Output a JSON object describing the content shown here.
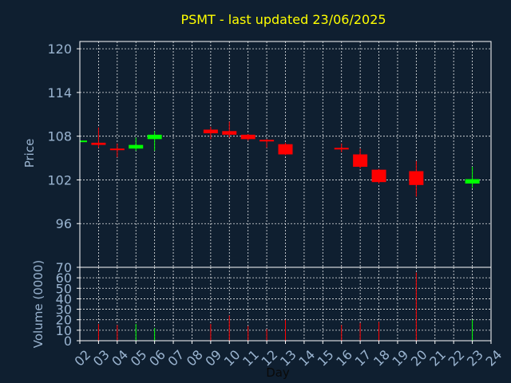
{
  "chart_data": {
    "type": "candlestick",
    "title": "PSMT - last updated 23/06/2025",
    "xlabel": "Day",
    "x_ticks": [
      "02",
      "03",
      "04",
      "05",
      "06",
      "07",
      "08",
      "09",
      "10",
      "11",
      "12",
      "13",
      "14",
      "15",
      "16",
      "17",
      "18",
      "19",
      "20",
      "21",
      "22",
      "23",
      "24"
    ],
    "price": {
      "ylabel": "Price",
      "ylim": [
        90,
        121
      ],
      "yticks": [
        96,
        102,
        108,
        114,
        120
      ],
      "candles": [
        {
          "day": "02",
          "open": 107.4,
          "close": 107.4,
          "high": 107.5,
          "low": 107.3
        },
        {
          "day": "03",
          "open": 107.1,
          "close": 106.8,
          "high": 109.2,
          "low": 106.4
        },
        {
          "day": "04",
          "open": 106.3,
          "close": 106.2,
          "high": 107.0,
          "low": 105.1
        },
        {
          "day": "05",
          "open": 106.3,
          "close": 106.8,
          "high": 107.8,
          "low": 106.0
        },
        {
          "day": "06",
          "open": 107.6,
          "close": 108.2,
          "high": 108.7,
          "low": 106.0
        },
        {
          "day": "09",
          "open": 108.9,
          "close": 108.4,
          "high": 109.3,
          "low": 107.6
        },
        {
          "day": "10",
          "open": 108.7,
          "close": 108.2,
          "high": 110.0,
          "low": 107.8
        },
        {
          "day": "11",
          "open": 108.2,
          "close": 107.6,
          "high": 108.3,
          "low": 107.4
        },
        {
          "day": "12",
          "open": 107.5,
          "close": 107.4,
          "high": 107.6,
          "low": 106.4
        },
        {
          "day": "13",
          "open": 106.9,
          "close": 105.5,
          "high": 107.1,
          "low": 105.4
        },
        {
          "day": "16",
          "open": 106.4,
          "close": 106.2,
          "high": 107.0,
          "low": 105.8
        },
        {
          "day": "17",
          "open": 105.5,
          "close": 103.8,
          "high": 106.3,
          "low": 103.6
        },
        {
          "day": "18",
          "open": 103.4,
          "close": 101.7,
          "high": 103.5,
          "low": 101.5
        },
        {
          "day": "20",
          "open": 103.2,
          "close": 101.3,
          "high": 104.6,
          "low": 99.7
        },
        {
          "day": "23",
          "open": 101.5,
          "close": 102.1,
          "high": 103.8,
          "low": 100.9
        }
      ],
      "up_color": "#00ff00",
      "down_color": "#ff0000"
    },
    "volume": {
      "ylabel": "Volume (0000)",
      "ylim": [
        0,
        70
      ],
      "yticks": [
        0,
        10,
        20,
        30,
        40,
        50,
        60,
        70
      ],
      "bars": [
        {
          "day": "03",
          "value": 16,
          "color": "#ff0000"
        },
        {
          "day": "04",
          "value": 15,
          "color": "#ff0000"
        },
        {
          "day": "05",
          "value": 16,
          "color": "#00ff00"
        },
        {
          "day": "06",
          "value": 12,
          "color": "#00ff00"
        },
        {
          "day": "09",
          "value": 16,
          "color": "#ff0000"
        },
        {
          "day": "10",
          "value": 24,
          "color": "#ff0000"
        },
        {
          "day": "11",
          "value": 14,
          "color": "#ff0000"
        },
        {
          "day": "12",
          "value": 11,
          "color": "#ff0000"
        },
        {
          "day": "13",
          "value": 20,
          "color": "#ff0000"
        },
        {
          "day": "16",
          "value": 15,
          "color": "#ff0000"
        },
        {
          "day": "17",
          "value": 17,
          "color": "#ff0000"
        },
        {
          "day": "18",
          "value": 18,
          "color": "#ff0000"
        },
        {
          "day": "20",
          "value": 65,
          "color": "#ff0000"
        },
        {
          "day": "23",
          "value": 20,
          "color": "#00ff00"
        }
      ]
    },
    "grid": true,
    "background_color": "#0f1f30",
    "title_color": "#ffff00",
    "tick_color": "#9ab4d0"
  }
}
